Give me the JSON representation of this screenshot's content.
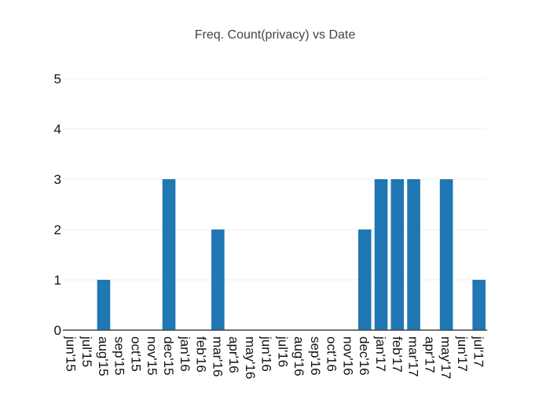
{
  "chart_data": {
    "type": "bar",
    "title": "Freq. Count(privacy)  vs Date",
    "xlabel": "",
    "ylabel": "",
    "ylim": [
      0,
      5
    ],
    "yticks": [
      0,
      1,
      2,
      3,
      4,
      5
    ],
    "grid": true,
    "legend": "none",
    "categories": [
      "jun'15",
      "jul'15",
      "aug'15",
      "sep'15",
      "oct'15",
      "nov'15",
      "dec'15",
      "jan'16",
      "feb'16",
      "mar'16",
      "apr'16",
      "may'16",
      "jun'16",
      "jul'16",
      "aug'16",
      "sep'16",
      "oct'16",
      "nov'16",
      "dec'16",
      "jan'17",
      "feb'17",
      "mar'17",
      "apr'17",
      "may'17",
      "jun'17",
      "jul'17"
    ],
    "values": [
      0,
      0,
      1,
      0,
      0,
      0,
      3,
      0,
      0,
      2,
      0,
      0,
      0,
      0,
      0,
      0,
      0,
      0,
      2,
      3,
      3,
      3,
      0,
      3,
      0,
      1
    ],
    "bar_color": "#1f77b4"
  }
}
